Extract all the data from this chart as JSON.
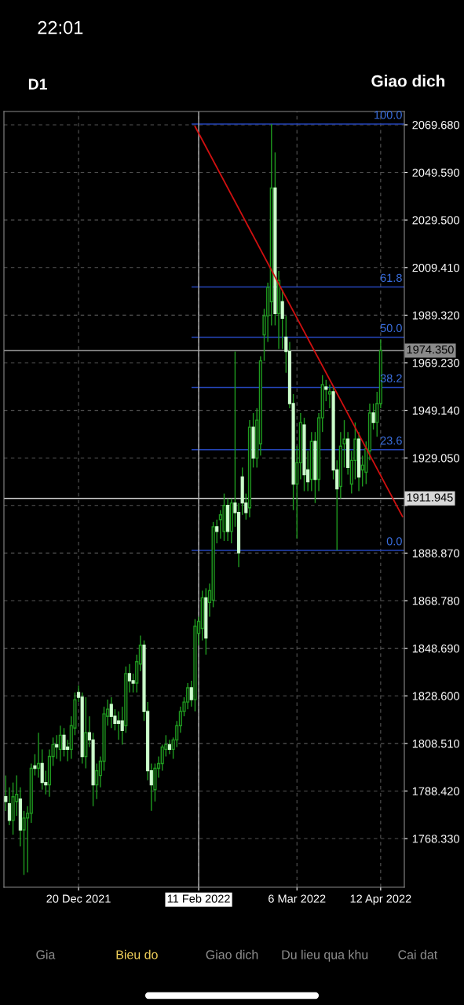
{
  "chart_data": {
    "type": "candlestick",
    "title": "D1",
    "annotations": [
      "22:01",
      "Giao dich",
      "Gia",
      "Bieu do",
      "Giao dich",
      "Du lieu qua khu",
      "Cai dat",
      {
        "text": "100.0",
        "y": 2070.0
      },
      {
        "text": "61.8",
        "y": 2001.2
      },
      {
        "text": "50.0",
        "y": 1980.0
      },
      {
        "text": "38.2",
        "y": 1958.8
      },
      {
        "text": "23.6",
        "y": 1932.5
      },
      {
        "text": "0.0",
        "y": 1890.0
      }
    ],
    "categories": [
      null,
      null,
      null,
      null,
      null,
      null,
      null,
      null,
      null,
      null,
      null,
      null,
      null,
      null,
      null,
      null,
      null,
      null,
      null,
      null,
      "20 Dec 2021",
      null,
      null,
      null,
      null,
      null,
      null,
      null,
      null,
      null,
      null,
      null,
      null,
      null,
      null,
      null,
      null,
      null,
      null,
      null,
      null,
      null,
      null,
      null,
      null,
      null,
      null,
      null,
      null,
      null,
      null,
      null,
      null,
      "11 Feb 2022",
      null,
      null,
      null,
      null,
      null,
      null,
      null,
      null,
      null,
      null,
      null,
      null,
      null,
      null,
      null,
      null,
      null,
      null,
      null,
      null,
      null,
      null,
      null,
      null,
      null,
      null,
      "6 Mar 2022",
      null,
      null,
      null,
      null,
      null,
      null,
      null,
      null,
      null,
      null,
      null,
      null,
      null,
      null,
      null,
      null,
      null,
      null,
      null,
      null,
      null,
      null,
      "12 Apr 2022",
      null,
      null,
      null,
      null,
      null,
      null
    ],
    "ohlc": [
      [
        1786,
        1795,
        1780,
        1784
      ],
      [
        1783,
        1790,
        1774,
        1776
      ],
      [
        1776,
        1792,
        1770,
        1786
      ],
      [
        1784,
        1795,
        1778,
        1787
      ],
      [
        1785,
        1790,
        1765,
        1772
      ],
      [
        1772,
        1780,
        1753,
        1777
      ],
      [
        1777,
        1782,
        1754,
        1779
      ],
      [
        1779,
        1800,
        1775,
        1798
      ],
      [
        1799,
        1804,
        1795,
        1798
      ],
      [
        1798,
        1813,
        1794,
        1800
      ],
      [
        1800,
        1806,
        1789,
        1792
      ],
      [
        1792,
        1797,
        1787,
        1791
      ],
      [
        1791,
        1806,
        1786,
        1803
      ],
      [
        1803,
        1811,
        1799,
        1808
      ],
      [
        1808,
        1812,
        1802,
        1807
      ],
      [
        1806,
        1816,
        1801,
        1812
      ],
      [
        1812,
        1815,
        1803,
        1806
      ],
      [
        1807,
        1810,
        1801,
        1806
      ],
      [
        1806,
        1820,
        1802,
        1816
      ],
      [
        1815,
        1830,
        1812,
        1827
      ],
      [
        1830,
        1833,
        1826,
        1828
      ],
      [
        1828,
        1830,
        1800,
        1803
      ],
      [
        1803,
        1828,
        1798,
        1813
      ],
      [
        1813,
        1820,
        1807,
        1810
      ],
      [
        1810,
        1813,
        1782,
        1791
      ],
      [
        1791,
        1800,
        1785,
        1797
      ],
      [
        1795,
        1803,
        1790,
        1801
      ],
      [
        1801,
        1824,
        1797,
        1821
      ],
      [
        1820,
        1827,
        1816,
        1823
      ],
      [
        1825,
        1828,
        1815,
        1820
      ],
      [
        1820,
        1823,
        1814,
        1817
      ],
      [
        1818,
        1822,
        1810,
        1817
      ],
      [
        1818,
        1824,
        1808,
        1814
      ],
      [
        1816,
        1841,
        1813,
        1838
      ],
      [
        1838,
        1842,
        1830,
        1835
      ],
      [
        1835,
        1838,
        1830,
        1834
      ],
      [
        1834,
        1846,
        1830,
        1843
      ],
      [
        1842,
        1854,
        1839,
        1850
      ],
      [
        1850,
        1852,
        1818,
        1822
      ],
      [
        1822,
        1826,
        1793,
        1797
      ],
      [
        1797,
        1800,
        1780,
        1791
      ],
      [
        1789,
        1800,
        1784,
        1798
      ],
      [
        1798,
        1803,
        1794,
        1800
      ],
      [
        1800,
        1808,
        1797,
        1807
      ],
      [
        1806,
        1812,
        1803,
        1808
      ],
      [
        1808,
        1810,
        1804,
        1806
      ],
      [
        1806,
        1811,
        1802,
        1810
      ],
      [
        1810,
        1818,
        1807,
        1816
      ],
      [
        1816,
        1824,
        1813,
        1822
      ],
      [
        1822,
        1828,
        1820,
        1826
      ],
      [
        1826,
        1834,
        1823,
        1832
      ],
      [
        1832,
        1835,
        1824,
        1827
      ],
      [
        1827,
        1861,
        1822,
        1858
      ],
      [
        1855,
        1862,
        1850,
        1860
      ],
      [
        1857,
        1873,
        1852,
        1870
      ],
      [
        1870,
        1874,
        1846,
        1853
      ],
      [
        1868,
        1876,
        1862,
        1873
      ],
      [
        1869,
        1902,
        1866,
        1900
      ],
      [
        1900,
        1903,
        1893,
        1898
      ],
      [
        1903,
        1907,
        1895,
        1905
      ],
      [
        1898,
        1914,
        1894,
        1909
      ],
      [
        1909,
        1912,
        1894,
        1898
      ],
      [
        1898,
        1912,
        1893,
        1910
      ],
      [
        1910,
        1974,
        1900,
        1906
      ],
      [
        1906,
        1910,
        1883,
        1889
      ],
      [
        1921,
        1925,
        1905,
        1910
      ],
      [
        1910,
        1914,
        1903,
        1906
      ],
      [
        1908,
        1945,
        1904,
        1942
      ],
      [
        1942,
        1948,
        1925,
        1929
      ],
      [
        1929,
        1950,
        1925,
        1945
      ],
      [
        1935,
        1972,
        1930,
        1970
      ],
      [
        1981,
        1992,
        1970,
        1989
      ],
      [
        1989,
        2003,
        1978,
        2001
      ],
      [
        1995,
        2070,
        1985,
        2043
      ],
      [
        2043,
        2058,
        1985,
        1990
      ],
      [
        1990,
        2008,
        1975,
        2004
      ],
      [
        1995,
        2000,
        1975,
        1988
      ],
      [
        1980,
        1989,
        1965,
        1974
      ],
      [
        1974,
        1978,
        1950,
        1952
      ],
      [
        1952,
        1956,
        1907,
        1918
      ],
      [
        1918,
        1934,
        1895,
        1927
      ],
      [
        1927,
        1948,
        1920,
        1944
      ],
      [
        1943,
        1946,
        1915,
        1922
      ],
      [
        1924,
        1932,
        1915,
        1919
      ],
      [
        1920,
        1940,
        1915,
        1936
      ],
      [
        1936,
        1940,
        1910,
        1920
      ],
      [
        1920,
        1948,
        1915,
        1946
      ],
      [
        1946,
        1964,
        1940,
        1960
      ],
      [
        1959,
        1962,
        1953,
        1958
      ],
      [
        1956,
        1960,
        1950,
        1957
      ],
      [
        1957,
        1959,
        1920,
        1924
      ],
      [
        1924,
        1928,
        1890,
        1916
      ],
      [
        1917,
        1940,
        1912,
        1934
      ],
      [
        1935,
        1945,
        1925,
        1937
      ],
      [
        1937,
        1940,
        1922,
        1925
      ],
      [
        1918,
        1932,
        1914,
        1928
      ],
      [
        1928,
        1944,
        1920,
        1937
      ],
      [
        1937,
        1940,
        1915,
        1921
      ],
      [
        1924,
        1930,
        1917,
        1926
      ],
      [
        1923,
        1936,
        1918,
        1933
      ],
      [
        1932,
        1952,
        1928,
        1948
      ],
      [
        1948,
        1952,
        1941,
        1944
      ],
      [
        1944,
        1957,
        1938,
        1952
      ],
      [
        1952,
        1979,
        1950,
        1974.35
      ],
      null,
      null,
      null,
      null,
      null,
      null
    ],
    "colors": [
      "#ccffcc",
      "#ccffcc",
      "#1f9a1f",
      "#1f9a1f",
      "#ccffcc",
      "#1f9a1f",
      "#1f9a1f",
      "#1f9a1f",
      "#ccffcc",
      "#1f9a1f",
      "#ccffcc",
      "#ccffcc",
      "#1f9a1f",
      "#1f9a1f",
      "#ccffcc",
      "#1f9a1f",
      "#ccffcc",
      "#ccffcc",
      "#1f9a1f",
      "#1f9a1f",
      "#ccffcc",
      "#ccffcc",
      "#1f9a1f",
      "#ccffcc",
      "#ccffcc",
      "#1f9a1f",
      "#1f9a1f",
      "#1f9a1f",
      "#1f9a1f",
      "#ccffcc",
      "#ccffcc",
      "#ccffcc",
      "#ccffcc",
      "#1f9a1f",
      "#ccffcc",
      "#ccffcc",
      "#1f9a1f",
      "#1f9a1f",
      "#ccffcc",
      "#ccffcc",
      "#ccffcc",
      "#1f9a1f",
      "#1f9a1f",
      "#1f9a1f",
      "#1f9a1f",
      "#ccffcc",
      "#1f9a1f",
      "#1f9a1f",
      "#1f9a1f",
      "#1f9a1f",
      "#1f9a1f",
      "#ccffcc",
      "#1f9a1f",
      "#1f9a1f",
      "#1f9a1f",
      "#ccffcc",
      "#1f9a1f",
      "#1f9a1f",
      "#ccffcc",
      "#1f9a1f",
      "#1f9a1f",
      "#ccffcc",
      "#1f9a1f",
      "#ccffcc",
      "#ccffcc",
      "#ccffcc",
      "#ccffcc",
      "#1f9a1f",
      "#ccffcc",
      "#1f9a1f",
      "#1f9a1f",
      "#1f9a1f",
      "#1f9a1f",
      "#1f9a1f",
      "#ccffcc",
      "#1f9a1f",
      "#ccffcc",
      "#ccffcc",
      "#ccffcc",
      "#ccffcc",
      "#1f9a1f",
      "#1f9a1f",
      "#ccffcc",
      "#ccffcc",
      "#1f9a1f",
      "#ccffcc",
      "#1f9a1f",
      "#1f9a1f",
      "#ccffcc",
      "#1f9a1f",
      "#ccffcc",
      "#ccffcc",
      "#1f9a1f",
      "#1f9a1f",
      "#ccffcc",
      "#1f9a1f",
      "#1f9a1f",
      "#ccffcc",
      "#1f9a1f",
      "#1f9a1f",
      "#1f9a1f",
      "#ccffcc",
      "#1f9a1f",
      "#1f9a1f",
      null,
      null,
      null,
      null,
      null,
      null
    ],
    "series": [
      {
        "type": "line",
        "color": "#d01010",
        "values": [
          null,
          null,
          null,
          null,
          null,
          null,
          null,
          null,
          null,
          null,
          null,
          null,
          null,
          null,
          null,
          null,
          null,
          null,
          null,
          null,
          null,
          null,
          null,
          null,
          null,
          null,
          null,
          null,
          null,
          null,
          null,
          null,
          null,
          null,
          null,
          null,
          null,
          null,
          null,
          null,
          null,
          null,
          null,
          null,
          null,
          null,
          null,
          null,
          null,
          null,
          null,
          null,
          2069.0,
          null,
          null,
          null,
          null,
          null,
          null,
          null,
          null,
          null,
          null,
          null,
          null,
          null,
          null,
          null,
          null,
          null,
          null,
          null,
          null,
          null,
          null,
          null,
          null,
          null,
          null,
          null,
          null,
          null,
          null,
          null,
          null,
          null,
          null,
          null,
          null,
          null,
          null,
          null,
          null,
          null,
          null,
          null,
          null,
          null,
          null,
          null,
          null,
          null,
          null,
          null,
          null,
          null,
          null,
          null,
          null,
          1904.3
        ]
      }
    ],
    "ylim": [
      1747.8,
      2075.3
    ],
    "yticks": [
      {
        "value": 1768.33,
        "label": "1768.330"
      },
      {
        "value": 1788.42,
        "label": "1788.420"
      },
      {
        "value": 1808.51,
        "label": "1808.510"
      },
      {
        "value": 1828.6,
        "label": "1828.600"
      },
      {
        "value": 1848.69,
        "label": "1848.690"
      },
      {
        "value": 1868.78,
        "label": "1868.780"
      },
      {
        "value": 1888.87,
        "label": "1888.870"
      },
      {
        "value": 1908.96,
        "label": null
      },
      {
        "value": 1929.05,
        "label": "1929.050"
      },
      {
        "value": 1949.14,
        "label": "1949.140"
      },
      {
        "value": 1969.23,
        "label": "1969.230"
      },
      {
        "value": 1989.32,
        "label": "1989.320"
      },
      {
        "value": 2009.41,
        "label": "2009.410"
      },
      {
        "value": 2029.5,
        "label": "2029.500"
      },
      {
        "value": 2049.59,
        "label": "2049.590"
      },
      {
        "value": 2069.68,
        "label": "2069.680"
      }
    ],
    "ref_lines": [
      {
        "axis": "y",
        "value": 2070.0,
        "color": "#2445b8"
      },
      {
        "axis": "y",
        "value": 2001.2,
        "color": "#2445b8"
      },
      {
        "axis": "y",
        "value": 1980.0,
        "color": "#2445b8"
      },
      {
        "axis": "y",
        "value": 1958.8,
        "color": "#2445b8"
      },
      {
        "axis": "y",
        "value": 1932.5,
        "color": "#2445b8"
      },
      {
        "axis": "y",
        "value": 1890.0,
        "color": "#2445b8"
      },
      {
        "axis": "y",
        "value": 1974.35,
        "label": "1974.350",
        "color": "#8a8a8a"
      },
      {
        "axis": "y",
        "value": 1911.945,
        "label": "1911.945",
        "color": "#d8d8d8"
      },
      {
        "axis": "x",
        "value": "11 Feb 2022",
        "color": "#b0b0b0"
      }
    ],
    "grid": true
  }
}
